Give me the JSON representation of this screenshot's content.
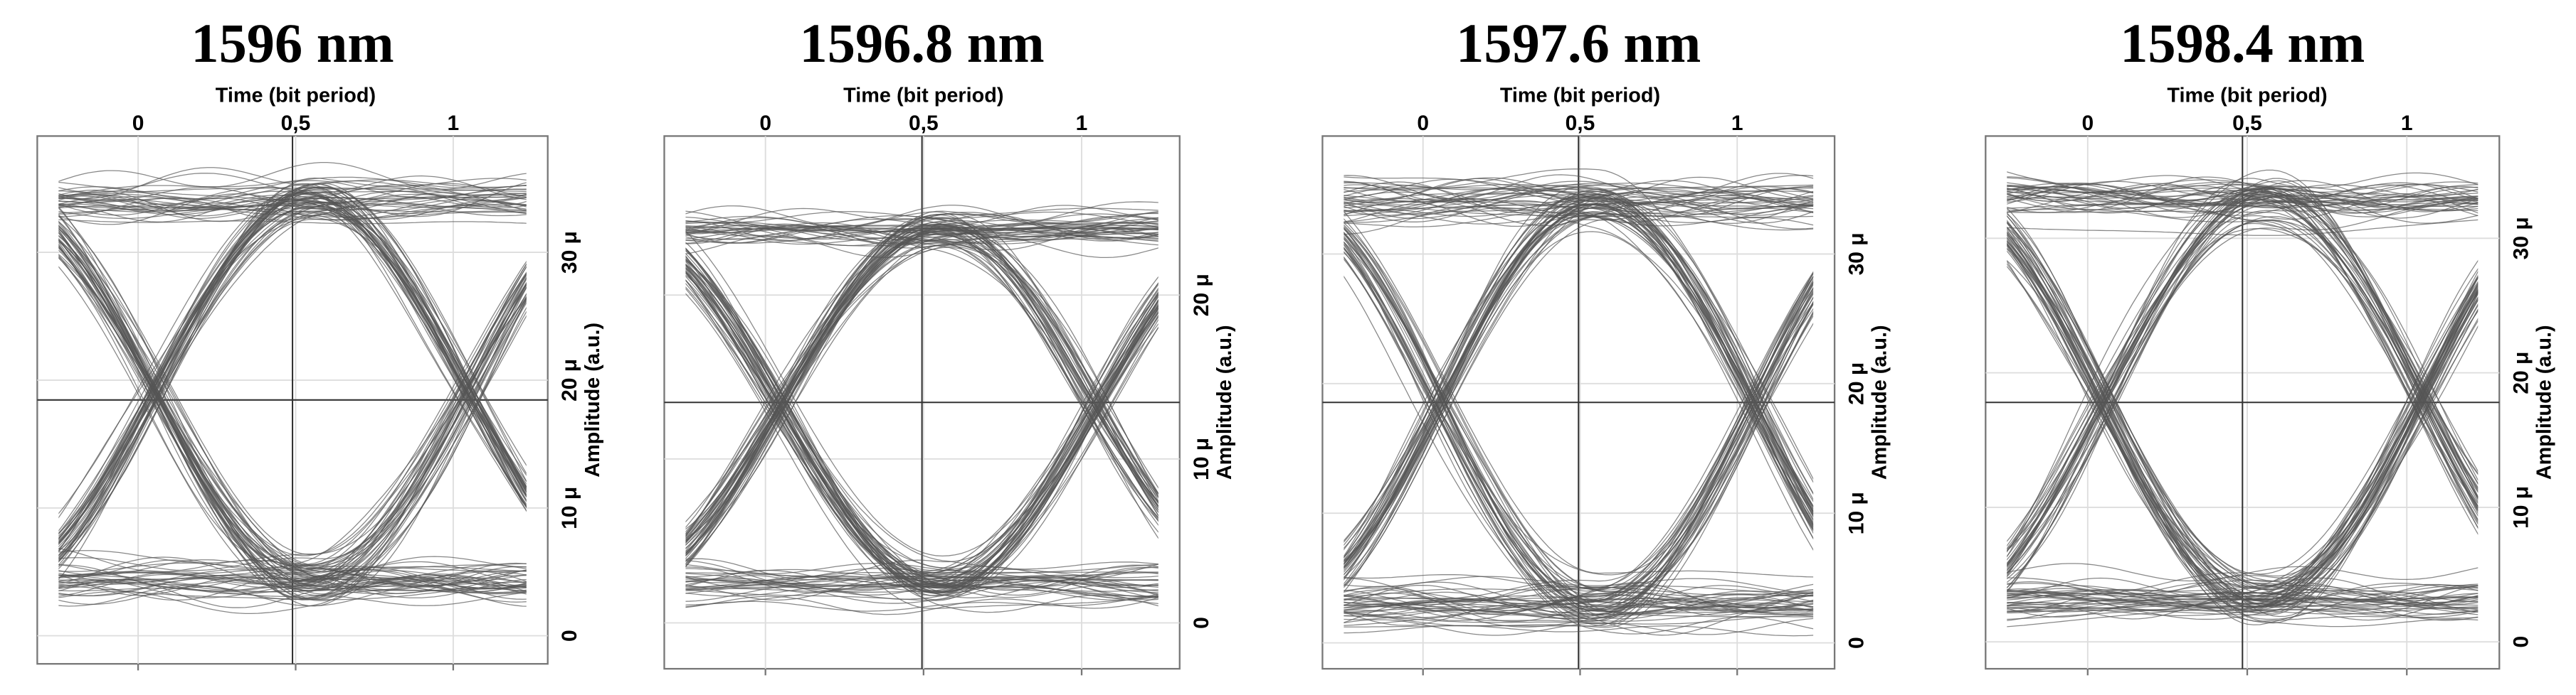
{
  "chart_data": [
    {
      "type": "eye",
      "title": "1596 nm",
      "x_label": "Time (bit period)",
      "y_label": "Amplitude (a.u.)",
      "xlim": [
        -0.32,
        1.3
      ],
      "xticks": [
        0,
        {
          "value": 0.5,
          "label": "0,5"
        },
        1
      ],
      "ylim": [
        -2.2e-06,
        3.91e-05
      ],
      "yticks": [
        0,
        {
          "value": 1e-05,
          "label": "10 μ"
        },
        {
          "value": 2e-05,
          "label": "20 μ"
        },
        {
          "value": 3e-05,
          "label": "30 μ"
        }
      ],
      "low_level": 4.2e-06,
      "high_level": 3.4e-05,
      "crossing_time": 0.05,
      "color": "#555555",
      "grid": true
    },
    {
      "type": "eye",
      "title": "1596.8 nm",
      "x_label": "Time (bit period)",
      "y_label": "Amplitude (a.u.)",
      "xlim": [
        -0.32,
        1.31
      ],
      "xticks": [
        0,
        {
          "value": 0.5,
          "label": "0,5"
        },
        1
      ],
      "ylim": [
        -2.8e-06,
        2.97e-05
      ],
      "yticks": [
        0,
        {
          "value": 1e-05,
          "label": "10 μ"
        },
        {
          "value": 2e-05,
          "label": "20 μ"
        }
      ],
      "low_level": 2.5e-06,
      "high_level": 2.4e-05,
      "crossing_time": 0.05,
      "color": "#555555",
      "grid": true
    },
    {
      "type": "eye",
      "title": "1597.6 nm",
      "x_label": "Time (bit period)",
      "y_label": "Amplitude (a.u.)",
      "xlim": [
        -0.32,
        1.31
      ],
      "xticks": [
        0,
        {
          "value": 0.5,
          "label": "0,5"
        },
        1
      ],
      "ylim": [
        -2e-06,
        3.91e-05
      ],
      "yticks": [
        0,
        {
          "value": 1e-05,
          "label": "10 μ"
        },
        {
          "value": 2e-05,
          "label": "20 μ"
        },
        {
          "value": 3e-05,
          "label": "30 μ"
        }
      ],
      "low_level": 3e-06,
      "high_level": 3.4e-05,
      "crossing_time": 0.05,
      "color": "#555555",
      "grid": true
    },
    {
      "type": "eye",
      "title": "1598.4 nm",
      "x_label": "Time (bit period)",
      "y_label": "Amplitude (a.u.)",
      "xlim": [
        -0.32,
        1.29
      ],
      "xticks": [
        0,
        {
          "value": 0.5,
          "label": "0,5"
        },
        1
      ],
      "ylim": [
        -2e-06,
        3.76e-05
      ],
      "yticks": [
        0,
        {
          "value": 1e-05,
          "label": "10 μ"
        },
        {
          "value": 2e-05,
          "label": "20 μ"
        },
        {
          "value": 3e-05,
          "label": "30 μ"
        }
      ],
      "low_level": 3e-06,
      "high_level": 3.3e-05,
      "crossing_time": 0.05,
      "color": "#555555",
      "grid": true
    }
  ]
}
